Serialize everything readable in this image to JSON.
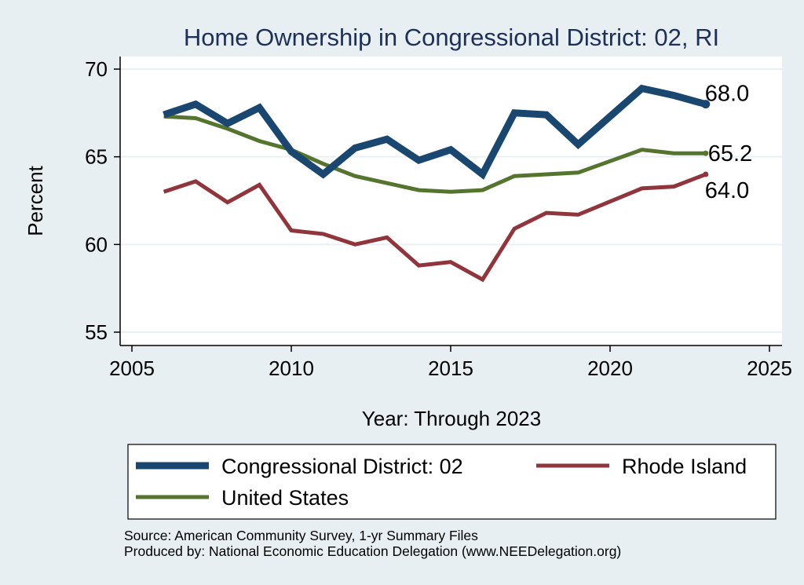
{
  "chart_data": {
    "type": "line",
    "title": "Home Ownership in Congressional District:  02, RI",
    "xlabel": "Year: Through 2023",
    "ylabel": "Percent",
    "xlim": [
      2005,
      2025
    ],
    "ylim": [
      55,
      70
    ],
    "x_ticks": [
      "2005",
      "2010",
      "2015",
      "2020",
      "2025"
    ],
    "y_ticks": [
      "55",
      "60",
      "65",
      "70"
    ],
    "grid": true,
    "legend_position": "bottom",
    "x": [
      2006,
      2007,
      2008,
      2009,
      2010,
      2011,
      2012,
      2013,
      2014,
      2015,
      2016,
      2017,
      2018,
      2019,
      2021,
      2022,
      2023
    ],
    "series": [
      {
        "name": "Congressional District:  02",
        "color": "#1a476f",
        "values": [
          67.4,
          68.0,
          66.9,
          67.8,
          65.3,
          64.0,
          65.5,
          66.0,
          64.8,
          65.4,
          64.0,
          67.5,
          67.4,
          65.7,
          68.9,
          68.5,
          68.0
        ],
        "end_label": "68.0"
      },
      {
        "name": "Rhode Island",
        "color": "#90353b",
        "values": [
          63.0,
          63.6,
          62.4,
          63.4,
          60.8,
          60.6,
          60.0,
          60.4,
          58.8,
          59.0,
          58.0,
          60.9,
          61.8,
          61.7,
          63.2,
          63.3,
          64.0
        ],
        "end_label": "64.0"
      },
      {
        "name": "United States",
        "color": "#55752f",
        "values": [
          67.3,
          67.2,
          66.6,
          65.9,
          65.4,
          64.6,
          63.9,
          63.5,
          63.1,
          63.0,
          63.1,
          63.9,
          64.0,
          64.1,
          65.4,
          65.2,
          65.2
        ],
        "end_label": "65.2"
      }
    ]
  },
  "source_lines": [
    "Source: American Community Survey, 1-yr Summary Files",
    "Produced by: National Economic Education Delegation (www.NEEDelegation.org)"
  ]
}
